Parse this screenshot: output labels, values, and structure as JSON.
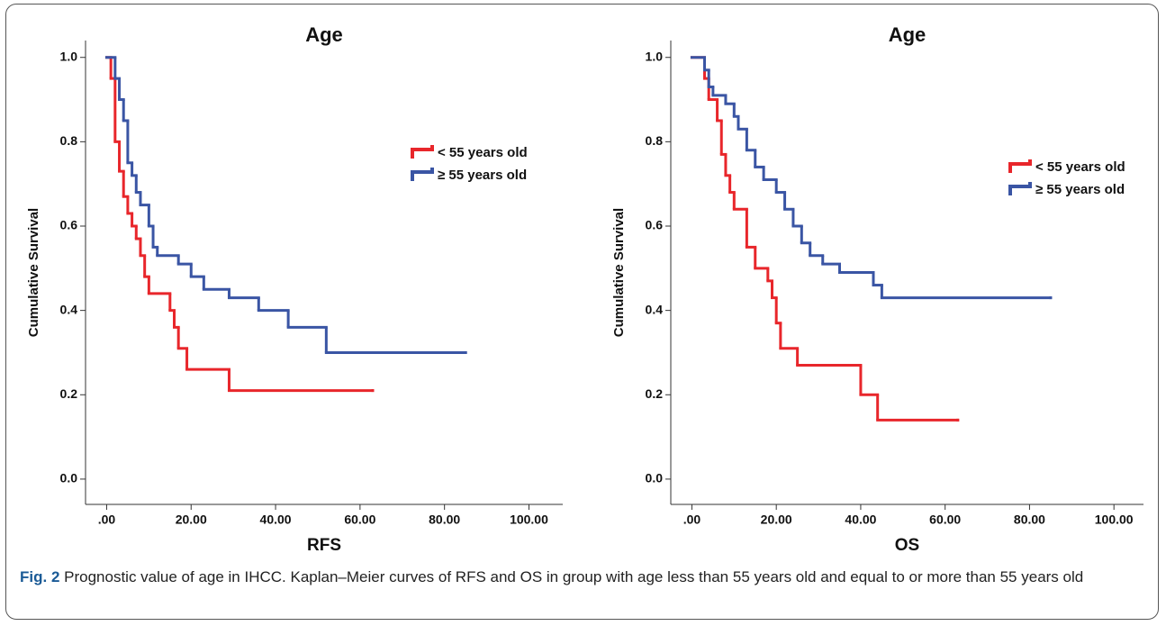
{
  "chart_data": [
    {
      "type": "step",
      "title": "Age",
      "x_label": "RFS",
      "y_label": "Cumulative Survival",
      "xlim": [
        -5,
        108
      ],
      "ylim": [
        -0.06,
        1.04
      ],
      "xticks": [
        {
          "value": 0,
          "label": ".00"
        },
        {
          "value": 20,
          "label": "20.00"
        },
        {
          "value": 40,
          "label": "40.00"
        },
        {
          "value": 60,
          "label": "60.00"
        },
        {
          "value": 80,
          "label": "80.00"
        },
        {
          "value": 100,
          "label": "100.00"
        }
      ],
      "yticks": [
        {
          "value": 0,
          "label": "0.0"
        },
        0.2,
        0.4,
        0.6,
        0.8,
        {
          "value": 1,
          "label": "1.0"
        }
      ],
      "grid": false,
      "legend": "upper right",
      "series": [
        {
          "name": "< 55 years old",
          "color": "#e8262b",
          "x": [
            0,
            1,
            2,
            3,
            4,
            5,
            6,
            7,
            8,
            9,
            10,
            15,
            16,
            17,
            19,
            29,
            63
          ],
          "values": [
            1.0,
            0.95,
            0.8,
            0.73,
            0.67,
            0.63,
            0.6,
            0.57,
            0.53,
            0.48,
            0.44,
            0.4,
            0.36,
            0.31,
            0.26,
            0.21,
            0.21
          ]
        },
        {
          "name": "≥ 55 years old",
          "color": "#3a55a4",
          "x": [
            0,
            2,
            3,
            4,
            5,
            6,
            7,
            8,
            10,
            11,
            12,
            17,
            20,
            23,
            29,
            36,
            43,
            52,
            85
          ],
          "values": [
            1.0,
            0.95,
            0.9,
            0.85,
            0.75,
            0.72,
            0.68,
            0.65,
            0.6,
            0.55,
            0.53,
            0.51,
            0.48,
            0.45,
            0.43,
            0.4,
            0.36,
            0.3,
            0.3
          ]
        }
      ]
    },
    {
      "type": "step",
      "title": "Age",
      "x_label": "OS",
      "y_label": "Cumulative Survival",
      "xlim": [
        -5,
        107
      ],
      "ylim": [
        -0.06,
        1.04
      ],
      "xticks": [
        {
          "value": 0,
          "label": ".00"
        },
        {
          "value": 20,
          "label": "20.00"
        },
        {
          "value": 40,
          "label": "40.00"
        },
        {
          "value": 60,
          "label": "60.00"
        },
        {
          "value": 80,
          "label": "80.00"
        },
        {
          "value": 100,
          "label": "100.00"
        }
      ],
      "yticks": [
        {
          "value": 0,
          "label": "0.0"
        },
        0.2,
        0.4,
        0.6,
        0.8,
        {
          "value": 1,
          "label": "1.0"
        }
      ],
      "grid": false,
      "legend": "upper right",
      "series": [
        {
          "name": "< 55 years old",
          "color": "#e8262b",
          "x": [
            0,
            3,
            4,
            6,
            7,
            8,
            9,
            10,
            13,
            15,
            18,
            19,
            20,
            21,
            25,
            40,
            44,
            63
          ],
          "values": [
            1.0,
            0.95,
            0.9,
            0.85,
            0.77,
            0.72,
            0.68,
            0.64,
            0.55,
            0.5,
            0.47,
            0.43,
            0.37,
            0.31,
            0.27,
            0.2,
            0.14,
            0.14
          ]
        },
        {
          "name": "≥ 55 years old",
          "color": "#3a55a4",
          "x": [
            0,
            3,
            4,
            5,
            8,
            10,
            11,
            13,
            15,
            17,
            20,
            22,
            24,
            26,
            28,
            31,
            35,
            43,
            45,
            85
          ],
          "values": [
            1.0,
            0.97,
            0.93,
            0.91,
            0.89,
            0.86,
            0.83,
            0.78,
            0.74,
            0.71,
            0.68,
            0.64,
            0.6,
            0.56,
            0.53,
            0.51,
            0.49,
            0.46,
            0.43,
            0.43
          ]
        }
      ]
    }
  ],
  "caption": {
    "label": "Fig. 2",
    "text": "Prognostic value of age in IHCC. Kaplan–Meier curves of RFS and OS in group with age less than 55 years old and equal to or more than 55 years old"
  }
}
